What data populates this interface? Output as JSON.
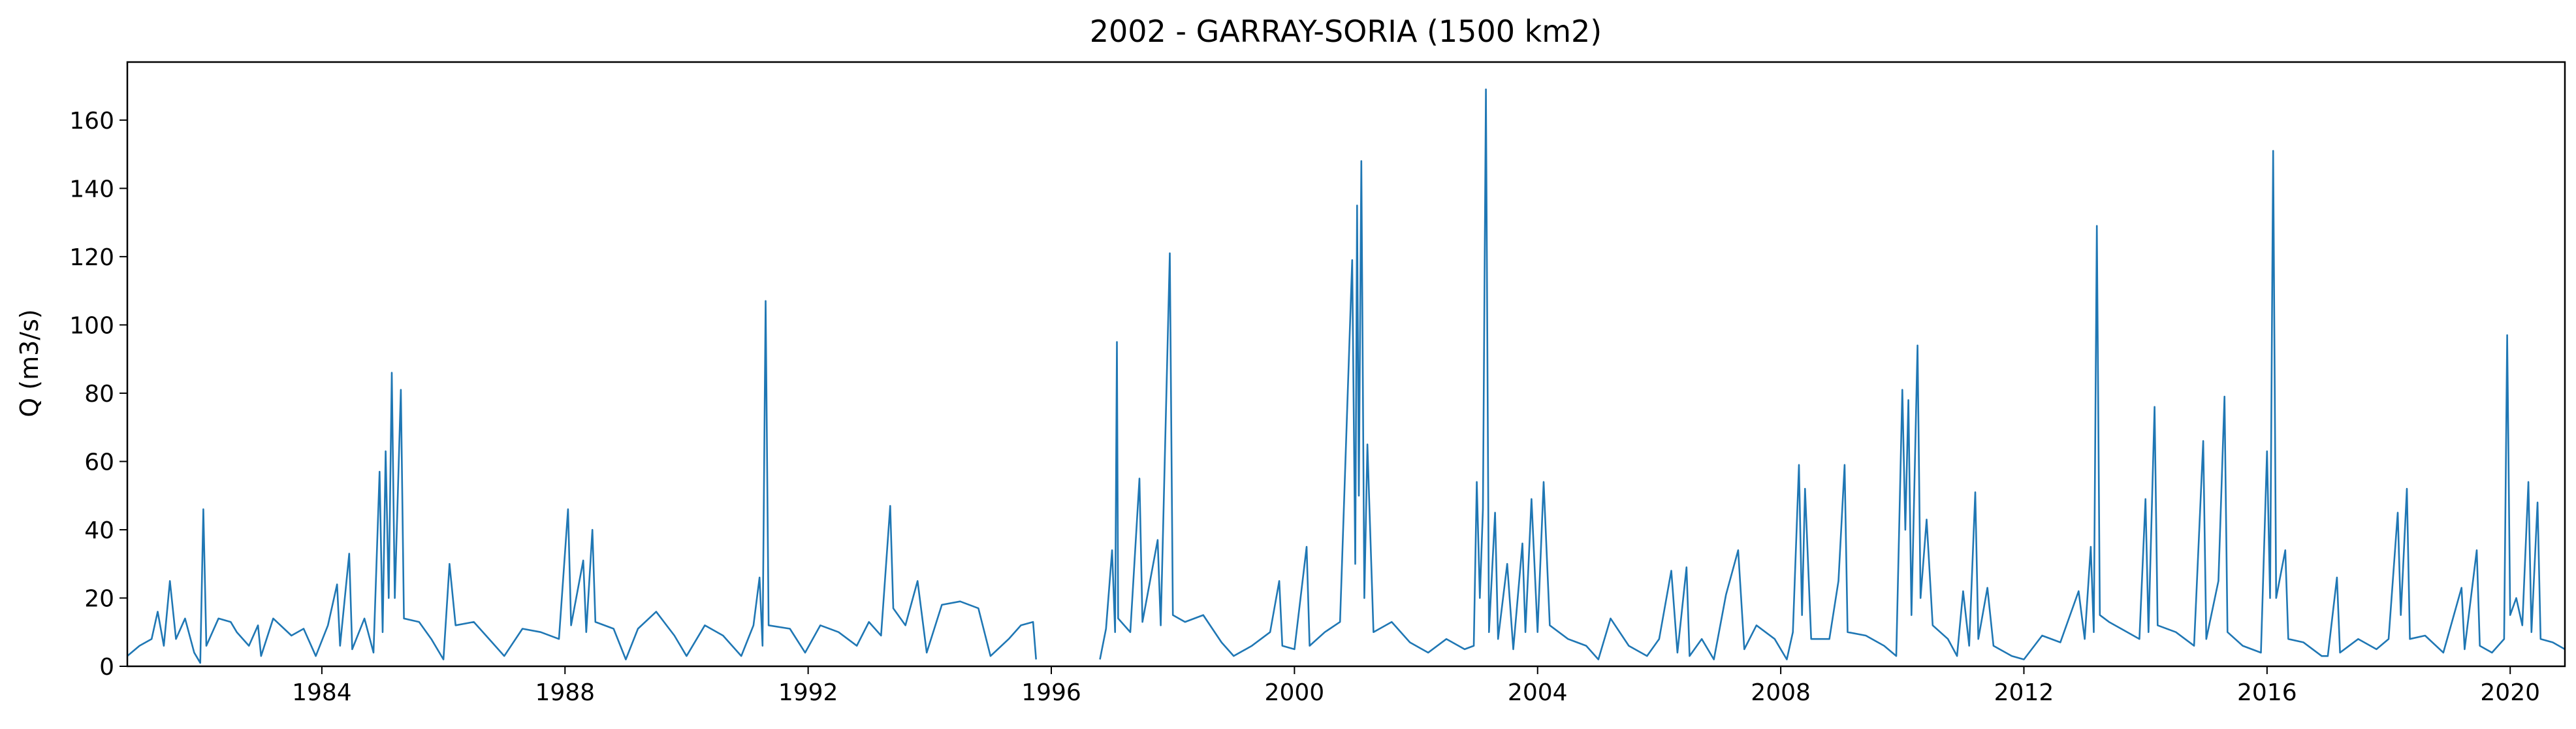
{
  "chart_data": {
    "type": "line",
    "title": "2002 - GARRAY-SORIA (1500 km2)",
    "xlabel": "",
    "ylabel": "Q (m3/s)",
    "xlim": [
      1980.8,
      2020.9
    ],
    "ylim": [
      0,
      177
    ],
    "xticks": [
      1984,
      1988,
      1992,
      1996,
      2000,
      2004,
      2008,
      2012,
      2016,
      2020
    ],
    "yticks": [
      0,
      20,
      40,
      60,
      80,
      100,
      120,
      140,
      160
    ],
    "grid": false,
    "legend": "none",
    "line_color": "#1f77b4",
    "series": [
      {
        "values": [
          [
            1980.8,
            3
          ],
          [
            1981.0,
            6
          ],
          [
            1981.2,
            8
          ],
          [
            1981.3,
            16
          ],
          [
            1981.4,
            6
          ],
          [
            1981.5,
            25
          ],
          [
            1981.6,
            8
          ],
          [
            1981.75,
            14
          ],
          [
            1981.9,
            4
          ],
          [
            1982.0,
            1
          ],
          [
            1982.05,
            46
          ],
          [
            1982.1,
            6
          ],
          [
            1982.3,
            14
          ],
          [
            1982.5,
            13
          ],
          [
            1982.6,
            10
          ],
          [
            1982.8,
            6
          ],
          [
            1982.95,
            12
          ],
          [
            1983.0,
            3
          ],
          [
            1983.2,
            14
          ],
          [
            1983.5,
            9
          ],
          [
            1983.7,
            11
          ],
          [
            1983.9,
            3
          ],
          [
            1984.1,
            12
          ],
          [
            1984.25,
            24
          ],
          [
            1984.3,
            6
          ],
          [
            1984.45,
            33
          ],
          [
            1984.5,
            5
          ],
          [
            1984.7,
            14
          ],
          [
            1984.85,
            4
          ],
          [
            1984.95,
            57
          ],
          [
            1985.0,
            10
          ],
          [
            1985.05,
            63
          ],
          [
            1985.1,
            20
          ],
          [
            1985.15,
            86
          ],
          [
            1985.2,
            20
          ],
          [
            1985.3,
            81
          ],
          [
            1985.35,
            14
          ],
          [
            1985.6,
            13
          ],
          [
            1985.8,
            8
          ],
          [
            1986.0,
            2
          ],
          [
            1986.1,
            30
          ],
          [
            1986.2,
            12
          ],
          [
            1986.5,
            13
          ],
          [
            1986.8,
            7
          ],
          [
            1987.0,
            3
          ],
          [
            1987.3,
            11
          ],
          [
            1987.6,
            10
          ],
          [
            1987.9,
            8
          ],
          [
            1988.05,
            46
          ],
          [
            1988.1,
            12
          ],
          [
            1988.3,
            31
          ],
          [
            1988.35,
            10
          ],
          [
            1988.45,
            40
          ],
          [
            1988.5,
            13
          ],
          [
            1988.8,
            11
          ],
          [
            1989.0,
            2
          ],
          [
            1989.2,
            11
          ],
          [
            1989.5,
            16
          ],
          [
            1989.8,
            9
          ],
          [
            1990.0,
            3
          ],
          [
            1990.3,
            12
          ],
          [
            1990.6,
            9
          ],
          [
            1990.9,
            3
          ],
          [
            1991.1,
            12
          ],
          [
            1991.2,
            26
          ],
          [
            1991.25,
            6
          ],
          [
            1991.3,
            107
          ],
          [
            1991.35,
            12
          ],
          [
            1991.7,
            11
          ],
          [
            1991.95,
            4
          ],
          [
            1992.2,
            12
          ],
          [
            1992.5,
            10
          ],
          [
            1992.8,
            6
          ],
          [
            1993.0,
            13
          ],
          [
            1993.2,
            9
          ],
          [
            1993.35,
            47
          ],
          [
            1993.4,
            17
          ],
          [
            1993.6,
            12
          ],
          [
            1993.8,
            25
          ],
          [
            1993.95,
            4
          ],
          [
            1994.2,
            18
          ],
          [
            1994.5,
            19
          ],
          [
            1994.8,
            17
          ],
          [
            1995.0,
            3
          ],
          [
            1995.3,
            8
          ],
          [
            1995.5,
            12
          ],
          [
            1995.7,
            13
          ],
          [
            1995.75,
            2
          ],
          null,
          [
            1996.8,
            2
          ],
          [
            1996.9,
            11
          ],
          [
            1997.0,
            34
          ],
          [
            1997.05,
            10
          ],
          [
            1997.08,
            95
          ],
          [
            1997.1,
            14
          ],
          [
            1997.3,
            10
          ],
          [
            1997.45,
            55
          ],
          [
            1997.5,
            13
          ],
          [
            1997.75,
            37
          ],
          [
            1997.8,
            12
          ],
          [
            1997.95,
            121
          ],
          [
            1998.0,
            15
          ],
          [
            1998.2,
            13
          ],
          [
            1998.5,
            15
          ],
          [
            1998.8,
            7
          ],
          [
            1999.0,
            3
          ],
          [
            1999.3,
            6
          ],
          [
            1999.6,
            10
          ],
          [
            1999.75,
            25
          ],
          [
            1999.8,
            6
          ],
          [
            2000.0,
            5
          ],
          [
            2000.2,
            35
          ],
          [
            2000.25,
            6
          ],
          [
            2000.5,
            10
          ],
          [
            2000.75,
            13
          ],
          [
            2000.95,
            119
          ],
          [
            2001.0,
            30
          ],
          [
            2001.03,
            135
          ],
          [
            2001.06,
            50
          ],
          [
            2001.1,
            148
          ],
          [
            2001.15,
            20
          ],
          [
            2001.2,
            65
          ],
          [
            2001.3,
            10
          ],
          [
            2001.6,
            13
          ],
          [
            2001.9,
            7
          ],
          [
            2002.2,
            4
          ],
          [
            2002.5,
            8
          ],
          [
            2002.8,
            5
          ],
          [
            2002.95,
            6
          ],
          [
            2003.0,
            54
          ],
          [
            2003.05,
            20
          ],
          [
            2003.1,
            46
          ],
          [
            2003.15,
            169
          ],
          [
            2003.2,
            10
          ],
          [
            2003.3,
            45
          ],
          [
            2003.35,
            8
          ],
          [
            2003.5,
            30
          ],
          [
            2003.6,
            5
          ],
          [
            2003.75,
            36
          ],
          [
            2003.8,
            10
          ],
          [
            2003.9,
            49
          ],
          [
            2004.0,
            10
          ],
          [
            2004.1,
            54
          ],
          [
            2004.2,
            12
          ],
          [
            2004.5,
            8
          ],
          [
            2004.8,
            6
          ],
          [
            2005.0,
            2
          ],
          [
            2005.2,
            14
          ],
          [
            2005.5,
            6
          ],
          [
            2005.8,
            3
          ],
          [
            2006.0,
            8
          ],
          [
            2006.2,
            28
          ],
          [
            2006.3,
            4
          ],
          [
            2006.45,
            29
          ],
          [
            2006.5,
            3
          ],
          [
            2006.7,
            8
          ],
          [
            2006.9,
            2
          ],
          [
            2007.1,
            21
          ],
          [
            2007.3,
            34
          ],
          [
            2007.4,
            5
          ],
          [
            2007.6,
            12
          ],
          [
            2007.9,
            8
          ],
          [
            2008.1,
            2
          ],
          [
            2008.2,
            10
          ],
          [
            2008.3,
            59
          ],
          [
            2008.35,
            15
          ],
          [
            2008.4,
            52
          ],
          [
            2008.5,
            8
          ],
          [
            2008.8,
            8
          ],
          [
            2008.95,
            25
          ],
          [
            2009.05,
            59
          ],
          [
            2009.1,
            10
          ],
          [
            2009.4,
            9
          ],
          [
            2009.7,
            6
          ],
          [
            2009.9,
            3
          ],
          [
            2010.0,
            81
          ],
          [
            2010.05,
            40
          ],
          [
            2010.1,
            78
          ],
          [
            2010.15,
            15
          ],
          [
            2010.25,
            94
          ],
          [
            2010.3,
            20
          ],
          [
            2010.4,
            43
          ],
          [
            2010.5,
            12
          ],
          [
            2010.75,
            8
          ],
          [
            2010.9,
            3
          ],
          [
            2011.0,
            22
          ],
          [
            2011.1,
            6
          ],
          [
            2011.2,
            51
          ],
          [
            2011.25,
            8
          ],
          [
            2011.4,
            23
          ],
          [
            2011.5,
            6
          ],
          [
            2011.8,
            3
          ],
          [
            2012.0,
            2
          ],
          [
            2012.3,
            9
          ],
          [
            2012.6,
            7
          ],
          [
            2012.9,
            22
          ],
          [
            2013.0,
            8
          ],
          [
            2013.1,
            35
          ],
          [
            2013.15,
            10
          ],
          [
            2013.2,
            129
          ],
          [
            2013.25,
            15
          ],
          [
            2013.4,
            13
          ],
          [
            2013.6,
            11
          ],
          [
            2013.9,
            8
          ],
          [
            2014.0,
            49
          ],
          [
            2014.05,
            10
          ],
          [
            2014.15,
            76
          ],
          [
            2014.2,
            12
          ],
          [
            2014.5,
            10
          ],
          [
            2014.8,
            6
          ],
          [
            2014.95,
            66
          ],
          [
            2015.0,
            8
          ],
          [
            2015.2,
            25
          ],
          [
            2015.3,
            79
          ],
          [
            2015.35,
            10
          ],
          [
            2015.6,
            6
          ],
          [
            2015.9,
            4
          ],
          [
            2016.0,
            63
          ],
          [
            2016.05,
            20
          ],
          [
            2016.1,
            151
          ],
          [
            2016.15,
            20
          ],
          [
            2016.3,
            34
          ],
          [
            2016.35,
            8
          ],
          [
            2016.6,
            7
          ],
          [
            2016.9,
            3
          ],
          [
            2017.0,
            3
          ],
          [
            2017.15,
            26
          ],
          [
            2017.2,
            4
          ],
          [
            2017.5,
            8
          ],
          [
            2017.8,
            5
          ],
          [
            2018.0,
            8
          ],
          [
            2018.15,
            45
          ],
          [
            2018.2,
            15
          ],
          [
            2018.3,
            52
          ],
          [
            2018.35,
            8
          ],
          [
            2018.6,
            9
          ],
          [
            2018.9,
            4
          ],
          [
            2019.2,
            23
          ],
          [
            2019.25,
            5
          ],
          [
            2019.45,
            34
          ],
          [
            2019.5,
            6
          ],
          [
            2019.7,
            4
          ],
          [
            2019.9,
            8
          ],
          [
            2019.95,
            97
          ],
          [
            2020.0,
            15
          ],
          [
            2020.1,
            20
          ],
          [
            2020.2,
            12
          ],
          [
            2020.3,
            54
          ],
          [
            2020.35,
            10
          ],
          [
            2020.45,
            48
          ],
          [
            2020.5,
            8
          ],
          [
            2020.7,
            7
          ],
          [
            2020.9,
            5
          ]
        ]
      }
    ]
  }
}
